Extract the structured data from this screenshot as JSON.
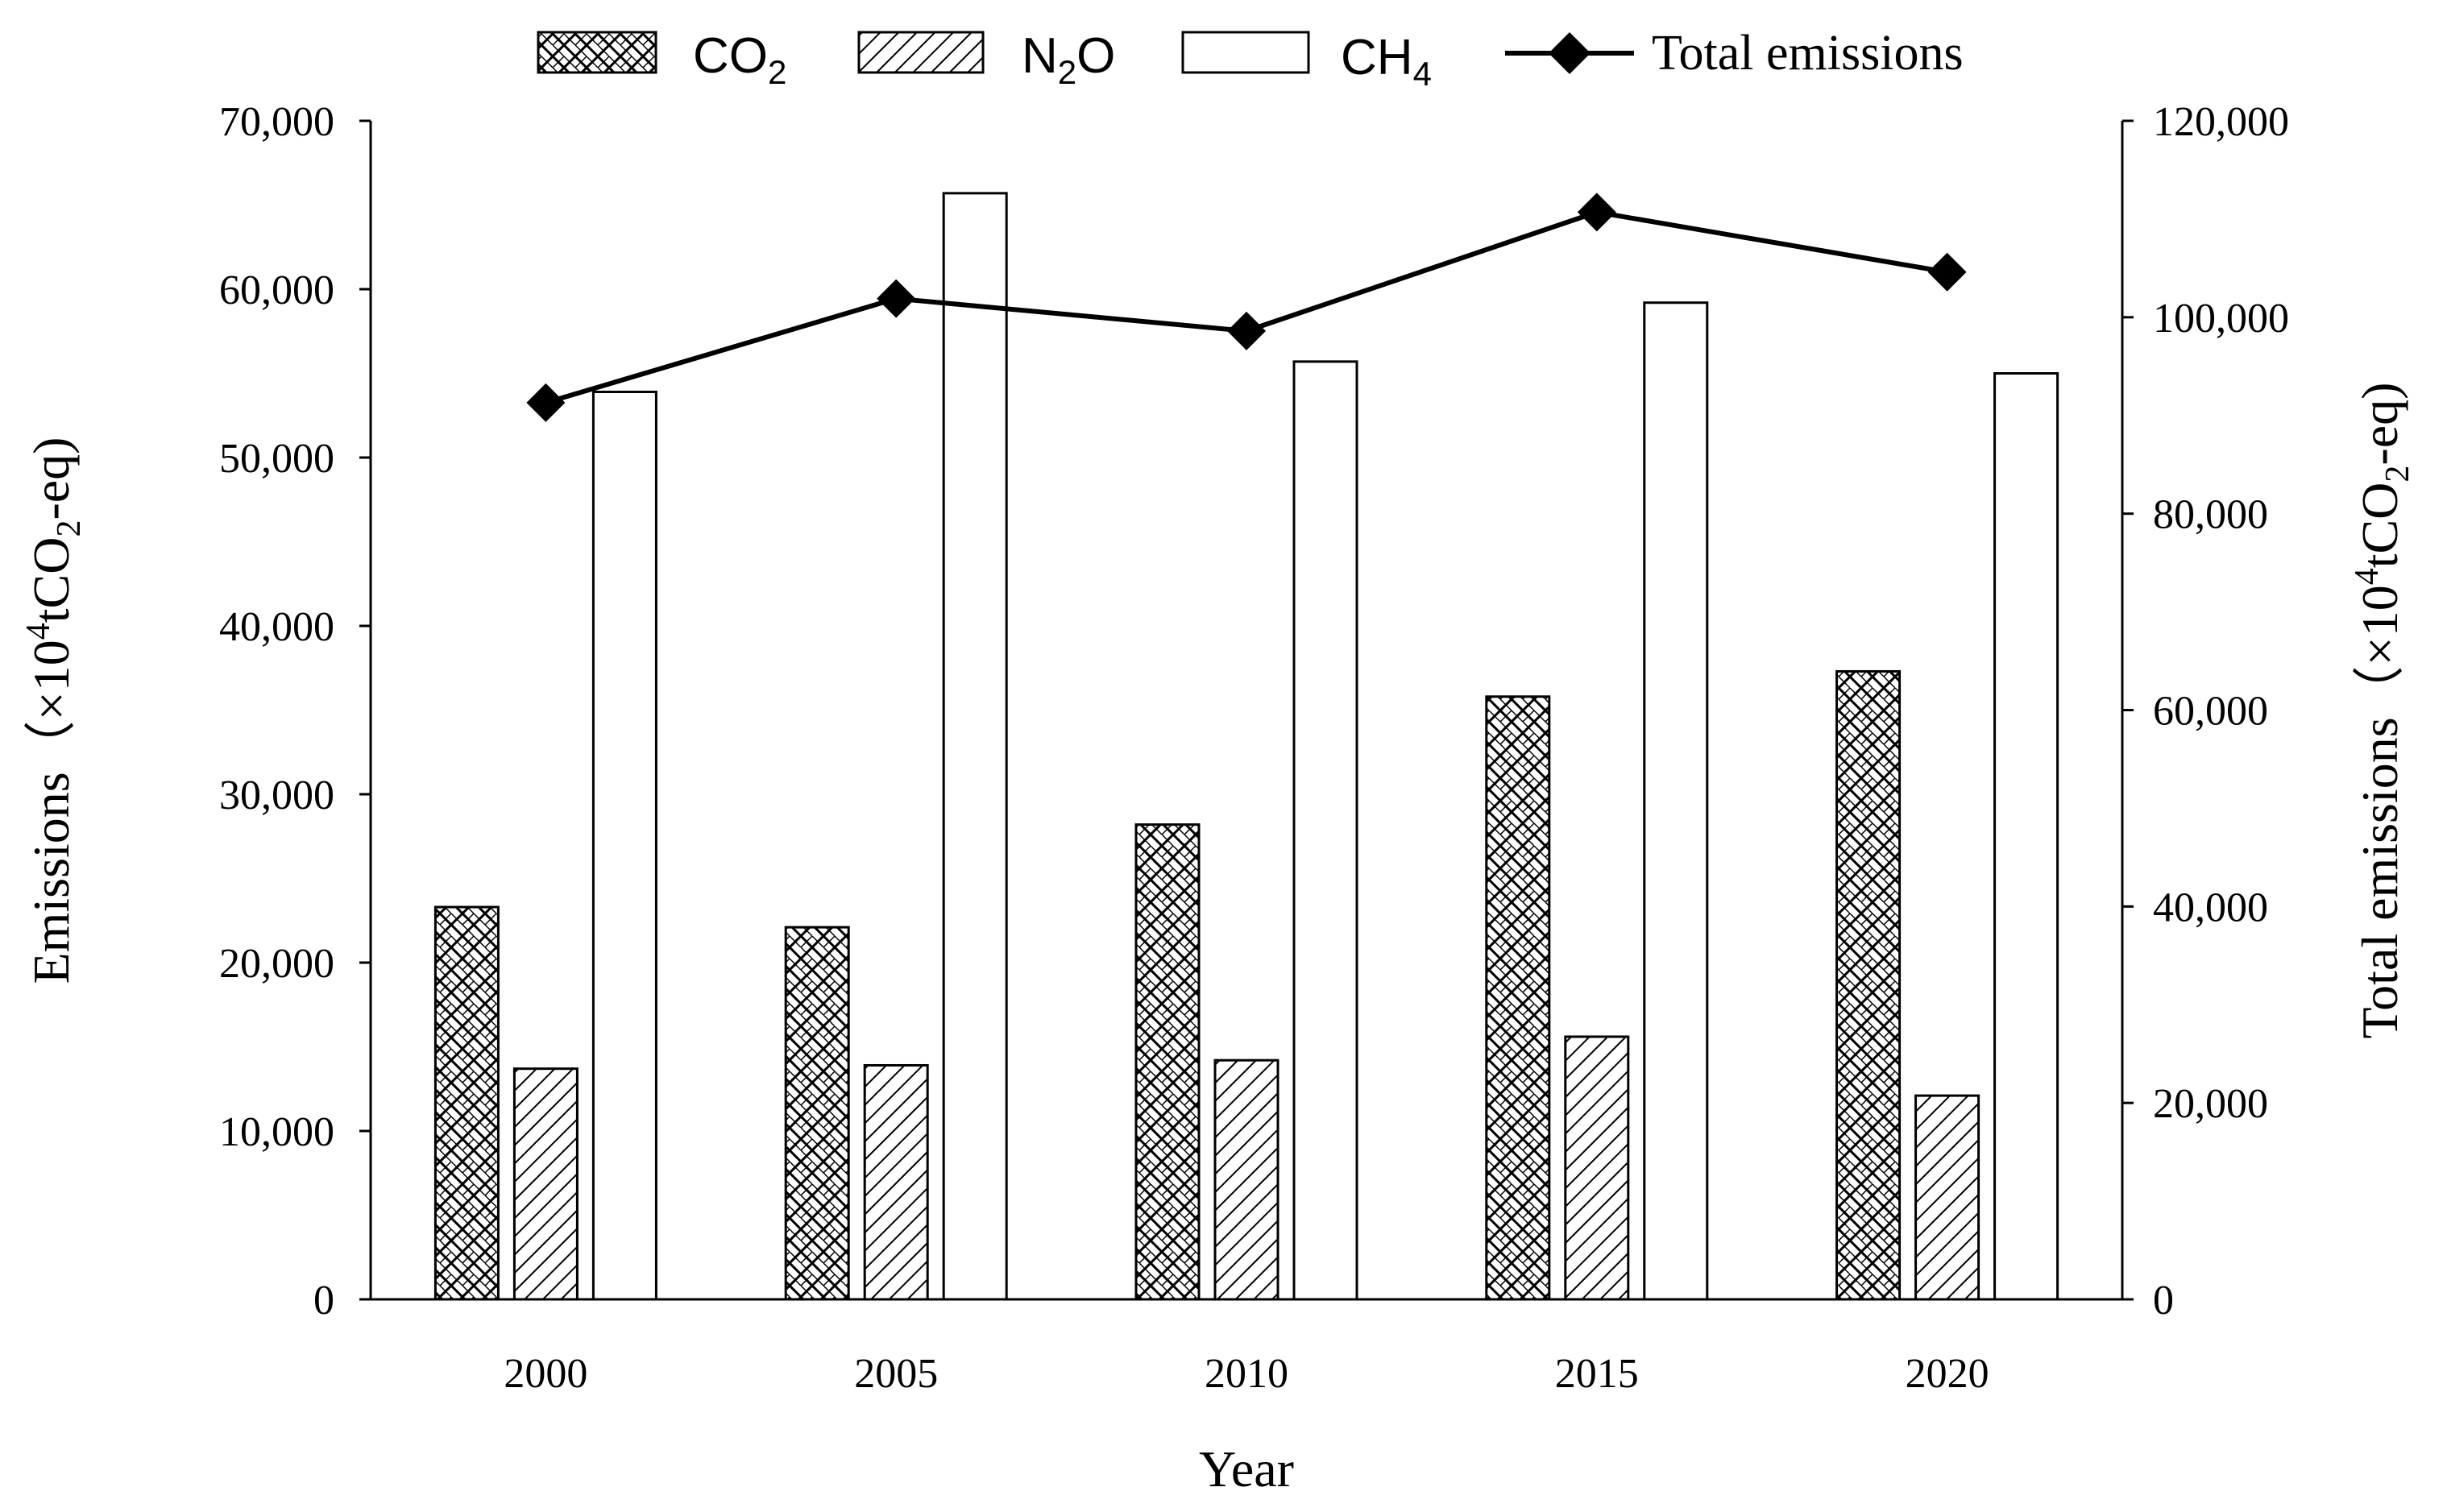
{
  "chart_data": {
    "type": "bar+line",
    "categories": [
      "2000",
      "2005",
      "2010",
      "2015",
      "2020"
    ],
    "xlabel": "Year",
    "ylabel_left": {
      "main": "Emissions（×10",
      "sup": "4",
      "mid": "tCO",
      "sub": "2",
      "tail": "-eq)"
    },
    "ylabel_right": {
      "main": "Total emissions（×10",
      "sup": "4",
      "mid": "tCO",
      "sub": "2",
      "tail": "-eq)"
    },
    "ylim_left": [
      0,
      70000
    ],
    "ylim_right": [
      0,
      120000
    ],
    "yticks_left": [
      "0",
      "10,000",
      "20,000",
      "30,000",
      "40,000",
      "50,000",
      "60,000",
      "70,000"
    ],
    "yticks_right": [
      "0",
      "20,000",
      "40,000",
      "60,000",
      "80,000",
      "100,000",
      "120,000"
    ],
    "series": [
      {
        "name": "CO2",
        "label_main": "CO",
        "label_sub": "2",
        "pattern": "crosshatch",
        "axis": "left",
        "values": [
          23300,
          22100,
          28200,
          35800,
          37300
        ]
      },
      {
        "name": "N2O",
        "label_main": "N",
        "label_sub": "2",
        "label_tail": "O",
        "pattern": "diagonal",
        "axis": "left",
        "values": [
          13700,
          13900,
          14200,
          15600,
          12100
        ]
      },
      {
        "name": "CH4",
        "label_main": "CH",
        "label_sub": "4",
        "pattern": "none",
        "axis": "left",
        "values": [
          53900,
          65700,
          55700,
          59200,
          55000
        ]
      }
    ],
    "line_series": {
      "name": "Total emissions",
      "label": "Total emissions",
      "axis": "right",
      "marker": "diamond",
      "values": [
        91300,
        101900,
        98600,
        110700,
        104600
      ]
    },
    "legend_position": "top",
    "colors": {
      "ink": "#000000",
      "fill": "#ffffff"
    }
  }
}
